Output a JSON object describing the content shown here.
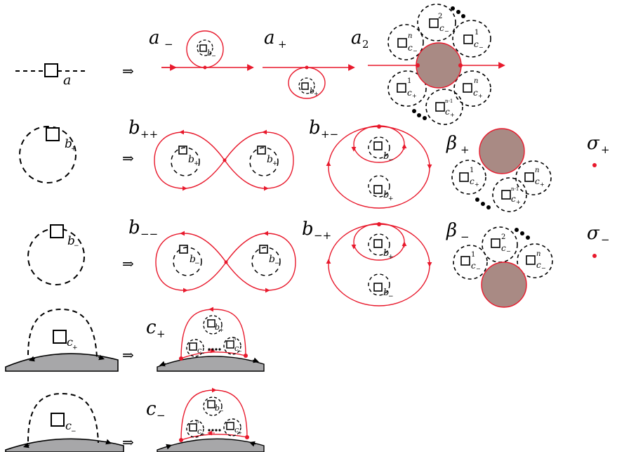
{
  "colors": {
    "ink": "#000000",
    "accent": "#e8192c",
    "disk": "#a98a84",
    "boundary": "#a7a7a9"
  },
  "arrow": "⇒",
  "rows": [
    {
      "source": {
        "box": "a"
      },
      "targets": [
        {
          "label": "a",
          "sub": "−",
          "box": "b",
          "box_sub": "−"
        },
        {
          "label": "a",
          "sub": "+",
          "box": "b",
          "box_sub": "+"
        },
        {
          "label": "a",
          "sub": "2",
          "petals": [
            {
              "sup": "2",
              "sub": "c",
              "sub2": "−"
            },
            {
              "sup": "n",
              "sub": "c",
              "sub2": "−"
            },
            {
              "sup": "1",
              "sub": "c",
              "sub2": "−"
            },
            {
              "sup": "1",
              "sub": "c",
              "sub2": "+"
            },
            {
              "sup": "n",
              "sub": "c",
              "sub2": "+"
            },
            {
              "sup": "n-1",
              "sub": "c",
              "sub2": "+"
            }
          ]
        }
      ]
    },
    {
      "source": {
        "box": "b",
        "box_sub": "+"
      },
      "targets": [
        {
          "label": "b",
          "sub": "++",
          "box": "b",
          "box_sub": "+"
        },
        {
          "label": "b",
          "sub": "+−",
          "inner": "b",
          "inner_sub": "−",
          "outer": "b",
          "outer_sub": "+"
        },
        {
          "label": "β",
          "sub": "+",
          "petals": [
            {
              "sup": "1",
              "sub": "c",
              "sub2": "+"
            },
            {
              "sup": "n",
              "sub": "c",
              "sub2": "+"
            },
            {
              "sup": "n-1",
              "sub": "c",
              "sub2": "+"
            }
          ]
        },
        {
          "label": "σ",
          "sub": "+"
        }
      ]
    },
    {
      "source": {
        "box": "b",
        "box_sub": "−"
      },
      "targets": [
        {
          "label": "b",
          "sub": "−−",
          "box": "b",
          "box_sub": "−"
        },
        {
          "label": "b",
          "sub": "−+",
          "inner": "b",
          "inner_sub": "+",
          "outer": "b",
          "outer_sub": "−"
        },
        {
          "label": "β",
          "sub": "−",
          "petals": [
            {
              "sup": "1",
              "sub": "c",
              "sub2": "−"
            },
            {
              "sup": "2",
              "sub": "c",
              "sub2": "−"
            },
            {
              "sup": "n",
              "sub": "c",
              "sub2": "−"
            }
          ]
        },
        {
          "label": "σ",
          "sub": "−"
        }
      ]
    },
    {
      "source": {
        "box": "c",
        "box_sub": "+"
      },
      "targets": [
        {
          "label": "c",
          "sub": "+",
          "top": "b",
          "top_sub": "+",
          "box": "c",
          "box_sub": "−",
          "box_sup": "n"
        }
      ]
    },
    {
      "source": {
        "box": "c",
        "box_sub": "−"
      },
      "targets": [
        {
          "label": "c",
          "sub": "−",
          "top": "b",
          "top_sub": "−",
          "box": "c",
          "box_sub": "+",
          "box_sup": "n"
        }
      ]
    }
  ]
}
